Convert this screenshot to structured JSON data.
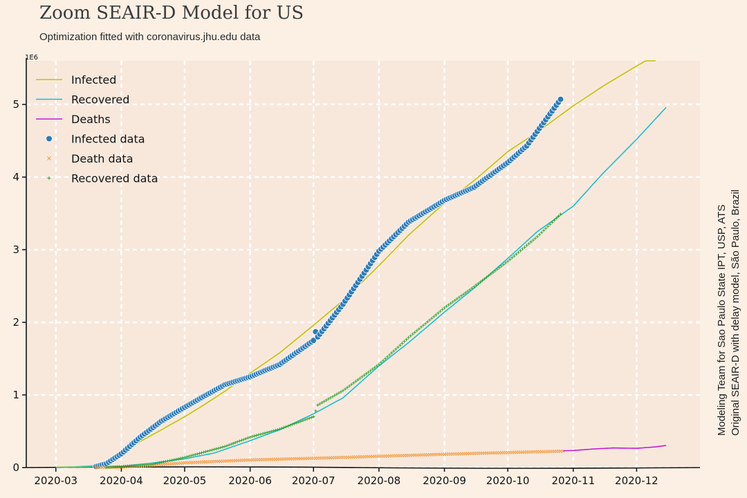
{
  "title": "Zoom SEAIR-D Model for US",
  "subtitle": "Optimization fitted with coronavirus.jhu.edu data",
  "credits": [
    "Modeling Team for Sao Paulo State IPT, USP, ATS",
    "Original SEAIR-D with delay model, São Paulo, Brazil"
  ],
  "colors": {
    "background": "#fcf0e4",
    "plot_bg": "#f8e8dc",
    "grid": "#ffffff",
    "infected": "#c3c300",
    "recovered": "#17c0d0",
    "deaths": "#c519d6",
    "infected_data": "#2b7bb9",
    "death_data": "#f39a3c",
    "recovered_data": "#2ca02c"
  },
  "chart_data": {
    "type": "line",
    "x_axis": {
      "type": "date",
      "range": [
        "2020-02-16",
        "2020-12-31"
      ],
      "ticks": [
        "2020-03-01",
        "2020-04-01",
        "2020-05-01",
        "2020-06-01",
        "2020-07-01",
        "2020-08-01",
        "2020-09-01",
        "2020-10-01",
        "2020-11-01",
        "2020-12-01"
      ],
      "tick_labels": [
        "2020-03",
        "2020-04",
        "2020-05",
        "2020-06",
        "2020-07",
        "2020-08",
        "2020-09",
        "2020-10",
        "2020-11",
        "2020-12"
      ]
    },
    "y_axis": {
      "range": [
        0,
        5600000
      ],
      "ticks": [
        0,
        1000000,
        2000000,
        3000000,
        4000000,
        5000000
      ],
      "tick_labels": [
        "0",
        "1",
        "2",
        "3",
        "4",
        "5"
      ],
      "multiplier_label": "1E6"
    },
    "grid": true,
    "legend_position": "top-left",
    "model_series": [
      {
        "name": "Infected",
        "color_key": "infected",
        "points": [
          [
            "2020-03-01",
            5000
          ],
          [
            "2020-03-10",
            10000
          ],
          [
            "2020-03-20",
            30000
          ],
          [
            "2020-03-25",
            80000
          ],
          [
            "2020-04-01",
            190000
          ],
          [
            "2020-04-10",
            360000
          ],
          [
            "2020-04-20",
            520000
          ],
          [
            "2020-05-01",
            700000
          ],
          [
            "2020-05-10",
            860000
          ],
          [
            "2020-05-20",
            1050000
          ],
          [
            "2020-06-01",
            1300000
          ],
          [
            "2020-06-15",
            1580000
          ],
          [
            "2020-07-01",
            1960000
          ],
          [
            "2020-07-15",
            2300000
          ],
          [
            "2020-08-01",
            2780000
          ],
          [
            "2020-08-15",
            3200000
          ],
          [
            "2020-09-01",
            3640000
          ],
          [
            "2020-09-15",
            3950000
          ],
          [
            "2020-10-01",
            4350000
          ],
          [
            "2020-10-15",
            4620000
          ],
          [
            "2020-11-01",
            4980000
          ],
          [
            "2020-11-15",
            5250000
          ],
          [
            "2020-12-01",
            5530000
          ],
          [
            "2020-12-10",
            5680000
          ]
        ]
      },
      {
        "name": "Recovered",
        "color_key": "recovered",
        "points": [
          [
            "2020-03-01",
            0
          ],
          [
            "2020-04-01",
            20000
          ],
          [
            "2020-04-15",
            60000
          ],
          [
            "2020-05-01",
            120000
          ],
          [
            "2020-05-15",
            200000
          ],
          [
            "2020-06-01",
            370000
          ],
          [
            "2020-06-15",
            520000
          ],
          [
            "2020-07-01",
            740000
          ],
          [
            "2020-07-15",
            960000
          ],
          [
            "2020-08-01",
            1400000
          ],
          [
            "2020-08-15",
            1720000
          ],
          [
            "2020-09-01",
            2140000
          ],
          [
            "2020-09-15",
            2470000
          ],
          [
            "2020-10-01",
            2880000
          ],
          [
            "2020-10-15",
            3250000
          ],
          [
            "2020-11-01",
            3600000
          ],
          [
            "2020-11-15",
            4050000
          ],
          [
            "2020-12-01",
            4520000
          ],
          [
            "2020-12-15",
            4960000
          ]
        ]
      },
      {
        "name": "Deaths",
        "color_key": "deaths",
        "points": [
          [
            "2020-10-27",
            230000
          ],
          [
            "2020-11-01",
            235000
          ],
          [
            "2020-11-10",
            255000
          ],
          [
            "2020-11-20",
            270000
          ],
          [
            "2020-12-01",
            265000
          ],
          [
            "2020-12-10",
            285000
          ],
          [
            "2020-12-15",
            305000
          ]
        ]
      }
    ],
    "data_series": [
      {
        "name": "Infected data",
        "marker": "circle",
        "color_key": "infected_data",
        "start": "2020-03-20",
        "end": "2020-10-26",
        "points": [
          [
            "2020-03-20",
            15000
          ],
          [
            "2020-03-25",
            55000
          ],
          [
            "2020-04-01",
            190000
          ],
          [
            "2020-04-10",
            420000
          ],
          [
            "2020-04-20",
            640000
          ],
          [
            "2020-05-01",
            830000
          ],
          [
            "2020-05-10",
            980000
          ],
          [
            "2020-05-20",
            1140000
          ],
          [
            "2020-06-01",
            1250000
          ],
          [
            "2020-06-15",
            1420000
          ],
          [
            "2020-07-01",
            1750000
          ],
          [
            "2020-07-02",
            1870000
          ],
          [
            "2020-07-03",
            1800000
          ],
          [
            "2020-07-15",
            2250000
          ],
          [
            "2020-08-01",
            2980000
          ],
          [
            "2020-08-15",
            3380000
          ],
          [
            "2020-09-01",
            3680000
          ],
          [
            "2020-09-15",
            3860000
          ],
          [
            "2020-10-01",
            4200000
          ],
          [
            "2020-10-10",
            4430000
          ],
          [
            "2020-10-20",
            4830000
          ],
          [
            "2020-10-26",
            5070000
          ]
        ]
      },
      {
        "name": "Death data",
        "marker": "x",
        "color_key": "death_data",
        "start": "2020-03-20",
        "end": "2020-10-27",
        "points": [
          [
            "2020-03-20",
            100
          ],
          [
            "2020-04-01",
            5000
          ],
          [
            "2020-04-15",
            30000
          ],
          [
            "2020-05-01",
            65000
          ],
          [
            "2020-06-01",
            105000
          ],
          [
            "2020-07-01",
            128000
          ],
          [
            "2020-08-01",
            155000
          ],
          [
            "2020-09-01",
            184000
          ],
          [
            "2020-10-01",
            207000
          ],
          [
            "2020-10-27",
            226000
          ]
        ]
      },
      {
        "name": "Recovered data",
        "marker": "plus",
        "color_key": "recovered_data",
        "start": "2020-03-25",
        "end": "2020-10-26",
        "points": [
          [
            "2020-03-25",
            2000
          ],
          [
            "2020-04-15",
            40000
          ],
          [
            "2020-05-01",
            140000
          ],
          [
            "2020-05-20",
            290000
          ],
          [
            "2020-06-01",
            420000
          ],
          [
            "2020-06-15",
            530000
          ],
          [
            "2020-07-01",
            700000
          ],
          [
            "2020-07-02",
            780000
          ],
          [
            "2020-07-03",
            860000
          ],
          [
            "2020-07-15",
            1060000
          ],
          [
            "2020-08-01",
            1420000
          ],
          [
            "2020-08-15",
            1790000
          ],
          [
            "2020-09-01",
            2200000
          ],
          [
            "2020-09-15",
            2490000
          ],
          [
            "2020-10-01",
            2840000
          ],
          [
            "2020-10-15",
            3180000
          ],
          [
            "2020-10-26",
            3490000
          ]
        ]
      }
    ]
  }
}
